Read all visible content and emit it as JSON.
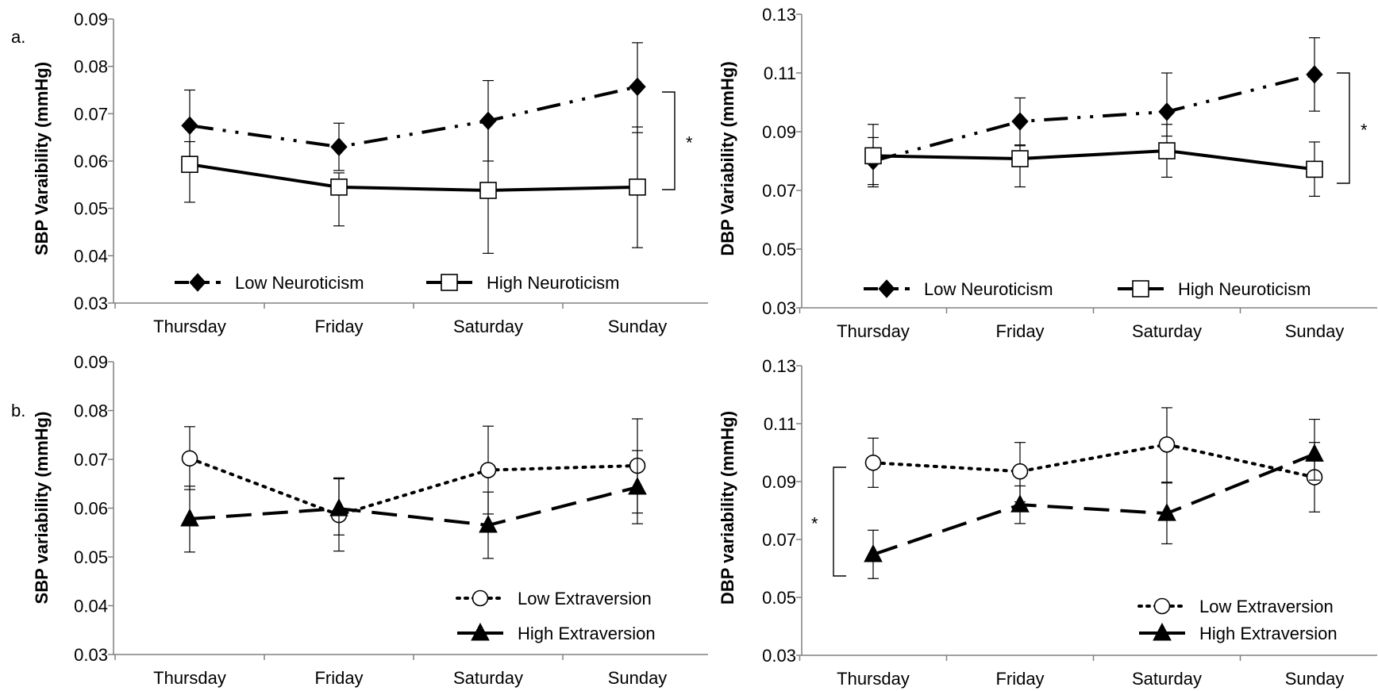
{
  "panel_labels": [
    "a.",
    "b."
  ],
  "chart_data": [
    {
      "type": "line",
      "ylabel": "SBP Varaibility (mmHg)",
      "ylim": [
        0.03,
        0.09
      ],
      "yticks": [
        "0.03",
        "0.04",
        "0.05",
        "0.06",
        "0.07",
        "0.08",
        "0.09"
      ],
      "categories": [
        "Thursday",
        "Friday",
        "Saturday",
        "Sunday"
      ],
      "legend_position": "bottom",
      "series": [
        {
          "name": "Low Neuroticism",
          "style": "dashdot",
          "marker": "diamond",
          "values": [
            0.0675,
            0.063,
            0.0685,
            0.0757
          ],
          "err_low": [
            0.059,
            0.058,
            0.06,
            0.066
          ],
          "err_high": [
            0.075,
            0.068,
            0.077,
            0.085
          ]
        },
        {
          "name": "High Neuroticism",
          "style": "solid",
          "marker": "square",
          "values": [
            0.0593,
            0.0545,
            0.0538,
            0.0545
          ],
          "err_low": [
            0.0513,
            0.0463,
            0.0405,
            0.0417
          ],
          "err_high": [
            0.0641,
            0.0575,
            0.0682,
            0.0672
          ]
        }
      ],
      "annotation": "*"
    },
    {
      "type": "line",
      "ylabel": "DBP Variability (mmHg)",
      "ylim": [
        0.03,
        0.13
      ],
      "yticks": [
        "0.03",
        "0.05",
        "0.07",
        "0.09",
        "0.11",
        "0.13"
      ],
      "categories": [
        "Thursday",
        "Friday",
        "Saturday",
        "Sunday"
      ],
      "legend_position": "bottom",
      "series": [
        {
          "name": "Low Neuroticism",
          "style": "dashdot",
          "marker": "diamond",
          "values": [
            0.08,
            0.0935,
            0.0968,
            0.1095
          ],
          "err_low": [
            0.072,
            0.0855,
            0.0885,
            0.097
          ],
          "err_high": [
            0.088,
            0.1015,
            0.11,
            0.122
          ]
        },
        {
          "name": "High Neuroticism",
          "style": "solid",
          "marker": "square",
          "values": [
            0.0818,
            0.0808,
            0.0835,
            0.0772
          ],
          "err_low": [
            0.0712,
            0.0712,
            0.0745,
            0.068
          ],
          "err_high": [
            0.0925,
            0.0852,
            0.0925,
            0.0865
          ]
        }
      ],
      "annotation": "*"
    },
    {
      "type": "line",
      "ylabel": "SBP variability (mmHg)",
      "ylim": [
        0.03,
        0.09
      ],
      "yticks": [
        "0.03",
        "0.04",
        "0.05",
        "0.06",
        "0.07",
        "0.08",
        "0.09"
      ],
      "categories": [
        "Thursday",
        "Friday",
        "Saturday",
        "Sunday"
      ],
      "legend_position": "bottom-right",
      "series": [
        {
          "name": "Low Extraversion",
          "style": "dotted",
          "marker": "circle",
          "values": [
            0.0702,
            0.0586,
            0.0678,
            0.0687
          ],
          "err_low": [
            0.0638,
            0.0545,
            0.0588,
            0.059
          ],
          "err_high": [
            0.0767,
            0.066,
            0.0768,
            0.0783
          ]
        },
        {
          "name": "High Extraversion",
          "style": "dashed",
          "marker": "triangle",
          "values": [
            0.0578,
            0.0599,
            0.0565,
            0.0643
          ],
          "err_low": [
            0.051,
            0.0512,
            0.0497,
            0.0568
          ],
          "err_high": [
            0.0645,
            0.0662,
            0.0633,
            0.0718
          ]
        }
      ],
      "annotation": ""
    },
    {
      "type": "line",
      "ylabel": "DBP variability (mmHg)",
      "ylim": [
        0.03,
        0.13
      ],
      "yticks": [
        "0.03",
        "0.05",
        "0.07",
        "0.09",
        "0.11",
        "0.13"
      ],
      "categories": [
        "Thursday",
        "Friday",
        "Saturday",
        "Sunday"
      ],
      "legend_position": "bottom-right",
      "series": [
        {
          "name": "Low Extraversion",
          "style": "dotted",
          "marker": "circle",
          "values": [
            0.0965,
            0.0935,
            0.1028,
            0.0915
          ],
          "err_low": [
            0.088,
            0.083,
            0.0898,
            0.0795
          ],
          "err_high": [
            0.105,
            0.1035,
            0.1155,
            0.1035
          ]
        },
        {
          "name": "High Extraversion",
          "style": "dashed",
          "marker": "triangle",
          "values": [
            0.0648,
            0.082,
            0.079,
            0.0995
          ],
          "err_low": [
            0.0565,
            0.0755,
            0.0685,
            0.0905
          ],
          "err_high": [
            0.0732,
            0.0885,
            0.0895,
            0.1115
          ]
        }
      ],
      "annotation": "*"
    }
  ]
}
